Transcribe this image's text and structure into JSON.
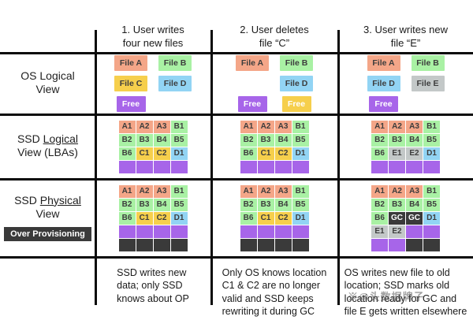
{
  "row_labels": {
    "os_line1": "OS Logical",
    "os_line2": "View",
    "ssd_logical_pre": "SSD ",
    "ssd_logical_u": "Logical",
    "ssd_logical_line2": "View (LBAs)",
    "ssd_physical_pre": "SSD ",
    "ssd_physical_u": "Physical",
    "ssd_physical_line2": "View",
    "over_provisioning": "Over Provisioning"
  },
  "colors": {
    "A": "#f4a688",
    "B": "#a9f1a4",
    "C": "#f6cf4c",
    "D": "#92d4f4",
    "free": "#a765e9",
    "gray": "#c3c8c8",
    "dark": "#3a3a3a"
  },
  "watermark": {
    "text": "※@头数据牌子"
  },
  "columns": [
    {
      "header": "1. User writes\nfour  new files",
      "os_rows": [
        [
          {
            "label": "File A",
            "color": "A"
          },
          {
            "label": "File B",
            "color": "B"
          }
        ],
        [
          {
            "label": "File C",
            "color": "C"
          },
          {
            "label": "File D",
            "color": "D"
          }
        ],
        [
          {
            "label": "Free",
            "color": "free",
            "white": true
          },
          null
        ]
      ],
      "logical_grid": [
        [
          {
            "t": "A1",
            "c": "A"
          },
          {
            "t": "A2",
            "c": "A"
          },
          {
            "t": "A3",
            "c": "A"
          },
          {
            "t": "B1",
            "c": "B"
          }
        ],
        [
          {
            "t": "B2",
            "c": "B"
          },
          {
            "t": "B3",
            "c": "B"
          },
          {
            "t": "B4",
            "c": "B"
          },
          {
            "t": "B5",
            "c": "B"
          }
        ],
        [
          {
            "t": "B6",
            "c": "B"
          },
          {
            "t": "C1",
            "c": "C"
          },
          {
            "t": "C2",
            "c": "C"
          },
          {
            "t": "D1",
            "c": "D"
          }
        ],
        [
          {
            "t": "",
            "c": "free"
          },
          {
            "t": "",
            "c": "free"
          },
          {
            "t": "",
            "c": "free"
          },
          {
            "t": "",
            "c": "free"
          }
        ]
      ],
      "physical_grid": [
        [
          {
            "t": "A1",
            "c": "A"
          },
          {
            "t": "A2",
            "c": "A"
          },
          {
            "t": "A3",
            "c": "A"
          },
          {
            "t": "B1",
            "c": "B"
          }
        ],
        [
          {
            "t": "B2",
            "c": "B"
          },
          {
            "t": "B3",
            "c": "B"
          },
          {
            "t": "B4",
            "c": "B"
          },
          {
            "t": "B5",
            "c": "B"
          }
        ],
        [
          {
            "t": "B6",
            "c": "B"
          },
          {
            "t": "C1",
            "c": "C"
          },
          {
            "t": "C2",
            "c": "C"
          },
          {
            "t": "D1",
            "c": "D"
          }
        ],
        [
          {
            "t": "",
            "c": "free"
          },
          {
            "t": "",
            "c": "free"
          },
          {
            "t": "",
            "c": "free"
          },
          {
            "t": "",
            "c": "free"
          }
        ],
        [
          {
            "t": "",
            "c": "dark"
          },
          {
            "t": "",
            "c": "dark"
          },
          {
            "t": "",
            "c": "dark"
          },
          {
            "t": "",
            "c": "dark"
          }
        ]
      ],
      "caption": "SSD writes new\ndata; only SSD\nknows about OP"
    },
    {
      "header": "2. User deletes\nfile “C”",
      "os_rows": [
        [
          {
            "label": "File A",
            "color": "A"
          },
          {
            "label": "File B",
            "color": "B"
          }
        ],
        [
          null,
          {
            "label": "File D",
            "color": "D"
          }
        ],
        [
          {
            "label": "Free",
            "color": "free",
            "white": true
          },
          {
            "label": "Free",
            "color": "C",
            "white": true
          }
        ]
      ],
      "logical_grid": [
        [
          {
            "t": "A1",
            "c": "A"
          },
          {
            "t": "A2",
            "c": "A"
          },
          {
            "t": "A3",
            "c": "A"
          },
          {
            "t": "B1",
            "c": "B"
          }
        ],
        [
          {
            "t": "B2",
            "c": "B"
          },
          {
            "t": "B3",
            "c": "B"
          },
          {
            "t": "B4",
            "c": "B"
          },
          {
            "t": "B5",
            "c": "B"
          }
        ],
        [
          {
            "t": "B6",
            "c": "B"
          },
          {
            "t": "C1",
            "c": "C"
          },
          {
            "t": "C2",
            "c": "C"
          },
          {
            "t": "D1",
            "c": "D"
          }
        ],
        [
          {
            "t": "",
            "c": "free"
          },
          {
            "t": "",
            "c": "free"
          },
          {
            "t": "",
            "c": "free"
          },
          {
            "t": "",
            "c": "free"
          }
        ]
      ],
      "physical_grid": [
        [
          {
            "t": "A1",
            "c": "A"
          },
          {
            "t": "A2",
            "c": "A"
          },
          {
            "t": "A3",
            "c": "A"
          },
          {
            "t": "B1",
            "c": "B"
          }
        ],
        [
          {
            "t": "B2",
            "c": "B"
          },
          {
            "t": "B3",
            "c": "B"
          },
          {
            "t": "B4",
            "c": "B"
          },
          {
            "t": "B5",
            "c": "B"
          }
        ],
        [
          {
            "t": "B6",
            "c": "B"
          },
          {
            "t": "C1",
            "c": "C"
          },
          {
            "t": "C2",
            "c": "C"
          },
          {
            "t": "D1",
            "c": "D"
          }
        ],
        [
          {
            "t": "",
            "c": "free"
          },
          {
            "t": "",
            "c": "free"
          },
          {
            "t": "",
            "c": "free"
          },
          {
            "t": "",
            "c": "free"
          }
        ],
        [
          {
            "t": "",
            "c": "dark"
          },
          {
            "t": "",
            "c": "dark"
          },
          {
            "t": "",
            "c": "dark"
          },
          {
            "t": "",
            "c": "dark"
          }
        ]
      ],
      "caption": "Only OS knows location\nC1 & C2 are no longer\nvalid and SSD keeps\nrewriting it during GC"
    },
    {
      "header": "3. User writes new\nfile “E”",
      "os_rows": [
        [
          {
            "label": "File A",
            "color": "A"
          },
          {
            "label": "File B",
            "color": "B"
          }
        ],
        [
          {
            "label": "File D",
            "color": "D"
          },
          {
            "label": "File E",
            "color": "gray"
          }
        ],
        [
          {
            "label": "Free",
            "color": "free",
            "white": true
          },
          null
        ]
      ],
      "logical_grid": [
        [
          {
            "t": "A1",
            "c": "A"
          },
          {
            "t": "A2",
            "c": "A"
          },
          {
            "t": "A3",
            "c": "A"
          },
          {
            "t": "B1",
            "c": "B"
          }
        ],
        [
          {
            "t": "B2",
            "c": "B"
          },
          {
            "t": "B3",
            "c": "B"
          },
          {
            "t": "B4",
            "c": "B"
          },
          {
            "t": "B5",
            "c": "B"
          }
        ],
        [
          {
            "t": "B6",
            "c": "B"
          },
          {
            "t": "E1",
            "c": "gray"
          },
          {
            "t": "E2",
            "c": "gray"
          },
          {
            "t": "D1",
            "c": "D"
          }
        ],
        [
          {
            "t": "",
            "c": "free"
          },
          {
            "t": "",
            "c": "free"
          },
          {
            "t": "",
            "c": "free"
          },
          {
            "t": "",
            "c": "free"
          }
        ]
      ],
      "physical_grid": [
        [
          {
            "t": "A1",
            "c": "A"
          },
          {
            "t": "A2",
            "c": "A"
          },
          {
            "t": "A3",
            "c": "A"
          },
          {
            "t": "B1",
            "c": "B"
          }
        ],
        [
          {
            "t": "B2",
            "c": "B"
          },
          {
            "t": "B3",
            "c": "B"
          },
          {
            "t": "B4",
            "c": "B"
          },
          {
            "t": "B5",
            "c": "B"
          }
        ],
        [
          {
            "t": "B6",
            "c": "B"
          },
          {
            "t": "GC",
            "c": "dark",
            "white": true
          },
          {
            "t": "GC",
            "c": "dark",
            "white": true
          },
          {
            "t": "D1",
            "c": "D"
          }
        ],
        [
          {
            "t": "E1",
            "c": "gray"
          },
          {
            "t": "E2",
            "c": "gray"
          },
          {
            "t": "",
            "c": "free"
          },
          {
            "t": "",
            "c": "free"
          }
        ],
        [
          {
            "t": "",
            "c": "free"
          },
          {
            "t": "",
            "c": "free"
          },
          {
            "t": "",
            "c": "dark"
          },
          {
            "t": "",
            "c": "dark"
          }
        ]
      ],
      "caption": "OS writes new file to old\nlocation; SSD marks old\nlocation ready for GC and\nfile E gets written elsewhere"
    }
  ]
}
